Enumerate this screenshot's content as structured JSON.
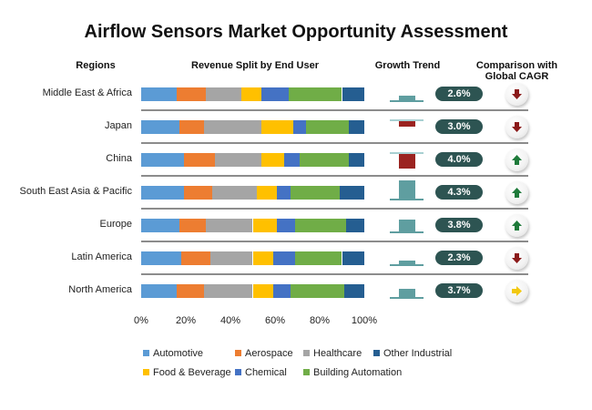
{
  "chart_data": {
    "type": "bar",
    "stacked": true,
    "orientation": "horizontal",
    "title": "Airflow Sensors Market Opportunity Assessment",
    "column_headers": {
      "regions": "Regions",
      "revenue": "Revenue Split by End User",
      "growth": "Growth Trend",
      "comparison": "Comparison with Global CAGR"
    },
    "xlim": [
      0,
      100
    ],
    "x_ticks": [
      "0%",
      "20%",
      "40%",
      "60%",
      "80%",
      "100%"
    ],
    "legend_placement": "bottom",
    "categories": [
      "Middle East & Africa",
      "Japan",
      "China",
      "South East Asia & Pacific",
      "Europe",
      "Latin America",
      "North America"
    ],
    "series": [
      {
        "name": "Automotive",
        "color": "#5b9bd5",
        "values": [
          16,
          17,
          19,
          19,
          17,
          18,
          16
        ]
      },
      {
        "name": "Aerospace",
        "color": "#ed7d31",
        "values": [
          13,
          11,
          14,
          13,
          12,
          13,
          12
        ]
      },
      {
        "name": "Healthcare",
        "color": "#a5a5a5",
        "values": [
          16,
          26,
          21,
          20,
          21,
          19,
          22
        ]
      },
      {
        "name": "Food & Beverage",
        "color": "#ffc000",
        "values": [
          9,
          14,
          10,
          9,
          11,
          9,
          9
        ]
      },
      {
        "name": "Chemical",
        "color": "#4472c4",
        "values": [
          12,
          6,
          7,
          6,
          8,
          10,
          8
        ]
      },
      {
        "name": "Building Automation",
        "color": "#70ad47",
        "values": [
          24,
          19,
          22,
          22,
          23,
          21,
          24
        ]
      },
      {
        "name": "Other Industrial",
        "color": "#255e91",
        "values": [
          10,
          7,
          7,
          11,
          8,
          10,
          9
        ]
      }
    ],
    "legend_order": [
      0,
      1,
      2,
      6,
      3,
      4,
      5
    ],
    "growth_trend_relative": [
      0.25,
      -0.3,
      -0.8,
      1.0,
      0.65,
      0.2,
      0.45
    ],
    "cagr": [
      "2.6%",
      "3.0%",
      "4.0%",
      "4.3%",
      "3.8%",
      "2.3%",
      "3.7%"
    ],
    "comparison": [
      "down",
      "down",
      "up",
      "up",
      "up",
      "down",
      "neutral"
    ],
    "colors": {
      "positive_trend": "#5f9ea0",
      "negative_trend": "#9b2320",
      "pill": "#2d5452",
      "up": "#1e7a3a",
      "down": "#8b1a1a",
      "neutral": "#f2c80f"
    }
  }
}
